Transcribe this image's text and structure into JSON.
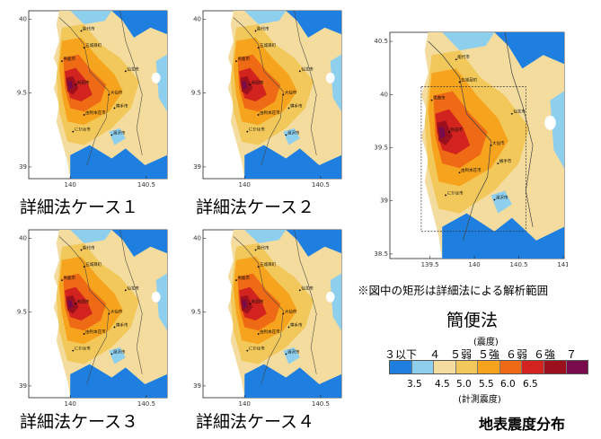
{
  "cases": [
    {
      "label": "詳細法ケース１"
    },
    {
      "label": "詳細法ケース２"
    },
    {
      "label": "詳細法ケース３"
    },
    {
      "label": "詳細法ケース４"
    }
  ],
  "small_map_axis": {
    "lat_labels": [
      "40",
      "39.5",
      "39"
    ],
    "lon_labels": [
      "140",
      "140.5"
    ]
  },
  "large_map_axis": {
    "lat_labels": [
      "40.5",
      "40",
      "39.5",
      "39",
      "38.5"
    ],
    "lon_labels": [
      "139.5",
      "140",
      "140.5",
      "141"
    ]
  },
  "city_labels": [
    "能代市",
    "五城目町",
    "男鹿市",
    "秋田市",
    "大仙市",
    "由利本荘市",
    "にかほ市",
    "横手市",
    "湯沢市",
    "仙北市"
  ],
  "note": "※図中の矩形は詳細法による解析範囲",
  "method_label": "簡便法",
  "legend": {
    "top_unit": "(震度)",
    "intensity_labels": [
      "３以下",
      "４",
      "５弱",
      "５強",
      "６弱",
      "６強",
      "７"
    ],
    "bottom_values": [
      "3.5",
      "4.5",
      "5.0",
      "5.5",
      "6.0",
      "6.5"
    ],
    "bottom_unit": "(計測震度)",
    "colors": [
      "#1e7fe0",
      "#8fcfee",
      "#f3dc9e",
      "#f2c85a",
      "#f6a31e",
      "#ee6a14",
      "#d2231e",
      "#9c0f1c",
      "#7a0b4a"
    ]
  },
  "figure_title": "地表震度分布"
}
